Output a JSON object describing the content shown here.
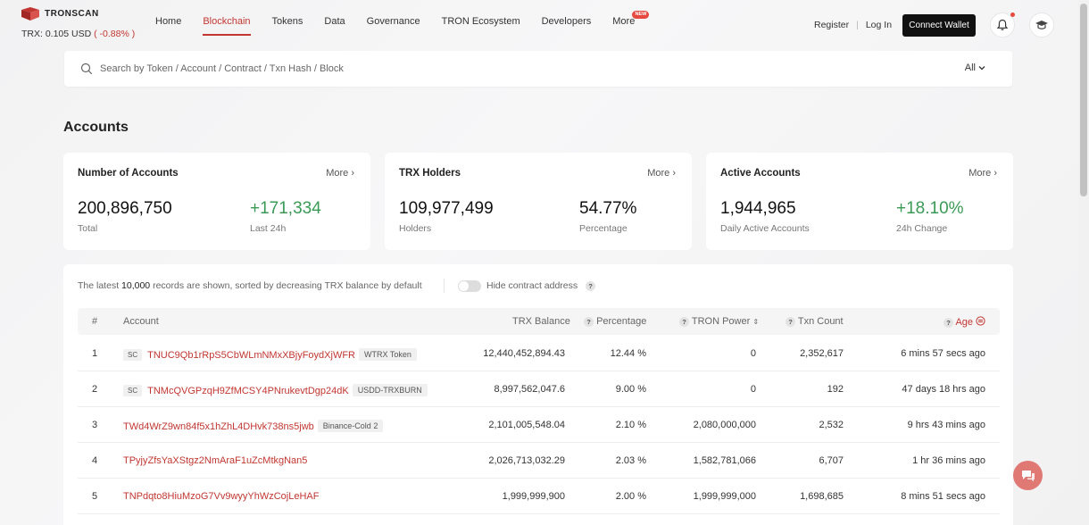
{
  "header": {
    "brand": "TRONSCAN",
    "price_label": "TRX: 0.105 USD",
    "price_change": "( -0.88% )",
    "nav": [
      {
        "label": "Home",
        "active": false
      },
      {
        "label": "Blockchain",
        "active": true
      },
      {
        "label": "Tokens",
        "active": false
      },
      {
        "label": "Data",
        "active": false
      },
      {
        "label": "Governance",
        "active": false
      },
      {
        "label": "TRON Ecosystem",
        "active": false
      },
      {
        "label": "Developers",
        "active": false
      },
      {
        "label": "More",
        "active": false,
        "badge": "NEW"
      }
    ],
    "register": "Register",
    "separator": "|",
    "login": "Log In",
    "connect_wallet": "Connect Wallet"
  },
  "search": {
    "placeholder": "Search by Token / Account / Contract / Txn Hash / Block",
    "filter": "All"
  },
  "page_title": "Accounts",
  "cards": [
    {
      "title": "Number of Accounts",
      "more": "More",
      "main_value": "200,896,750",
      "main_label": "Total",
      "side_value": "+171,334",
      "side_label": "Last 24h",
      "side_green": true
    },
    {
      "title": "TRX Holders",
      "more": "More",
      "main_value": "109,977,499",
      "main_label": "Holders",
      "side_value": "54.77%",
      "side_label": "Percentage",
      "side_green": false
    },
    {
      "title": "Active Accounts",
      "more": "More",
      "main_value": "1,944,965",
      "main_label": "Daily Active Accounts",
      "side_value": "+18.10%",
      "side_label": "24h Change",
      "side_green": true
    }
  ],
  "table": {
    "note_prefix": "The latest",
    "note_count": "10,000",
    "note_suffix": "records are shown, sorted by decreasing TRX balance by default",
    "hide_contract": "Hide contract address",
    "columns": {
      "index": "#",
      "account": "Account",
      "balance": "TRX Balance",
      "percentage": "Percentage",
      "power": "TRON Power",
      "txn": "Txn Count",
      "age": "Age"
    },
    "rows": [
      {
        "index": "1",
        "sc": "SC",
        "account": "TNUC9Qb1rRpS5CbWLmNMxXBjyFoydXjWFR",
        "tag": "WTRX Token",
        "balance": "12,440,452,894.43",
        "percentage": "12.44 %",
        "power": "0",
        "txn": "2,352,617",
        "age": "6 mins 57 secs ago"
      },
      {
        "index": "2",
        "sc": "SC",
        "account": "TNMcQVGPzqH9ZfMCSY4PNrukevtDgp24dK",
        "tag": "USDD-TRXBURN",
        "balance": "8,997,562,047.6",
        "percentage": "9.00 %",
        "power": "0",
        "txn": "192",
        "age": "47 days 18 hrs ago"
      },
      {
        "index": "3",
        "sc": "",
        "account": "TWd4WrZ9wn84f5x1hZhL4DHvk738ns5jwb",
        "tag": "Binance-Cold 2",
        "balance": "2,101,005,548.04",
        "percentage": "2.10 %",
        "power": "2,080,000,000",
        "txn": "2,532",
        "age": "9 hrs 43 mins ago"
      },
      {
        "index": "4",
        "sc": "",
        "account": "TPyjyZfsYaXStgz2NmAraF1uZcMtkgNan5",
        "tag": "",
        "balance": "2,026,713,032.29",
        "percentage": "2.03 %",
        "power": "1,582,781,066",
        "txn": "6,707",
        "age": "1 hr 36 mins ago"
      },
      {
        "index": "5",
        "sc": "",
        "account": "TNPdqto8HiuMzoG7Vv9wyyYhWzCojLeHAF",
        "tag": "",
        "balance": "1,999,999,900",
        "percentage": "2.00 %",
        "power": "1,999,999,000",
        "txn": "1,698,685",
        "age": "8 mins 51 secs ago"
      }
    ]
  },
  "colors": {
    "accent": "#c23631",
    "positive": "#3a9a55"
  },
  "icons": [
    "tronscan-logo-icon",
    "bell-icon",
    "graduation-cap-icon",
    "search-icon",
    "chevron-down-icon",
    "chevron-right-icon",
    "help-icon",
    "sort-icon",
    "clock-toggle-icon",
    "chat-icon"
  ]
}
